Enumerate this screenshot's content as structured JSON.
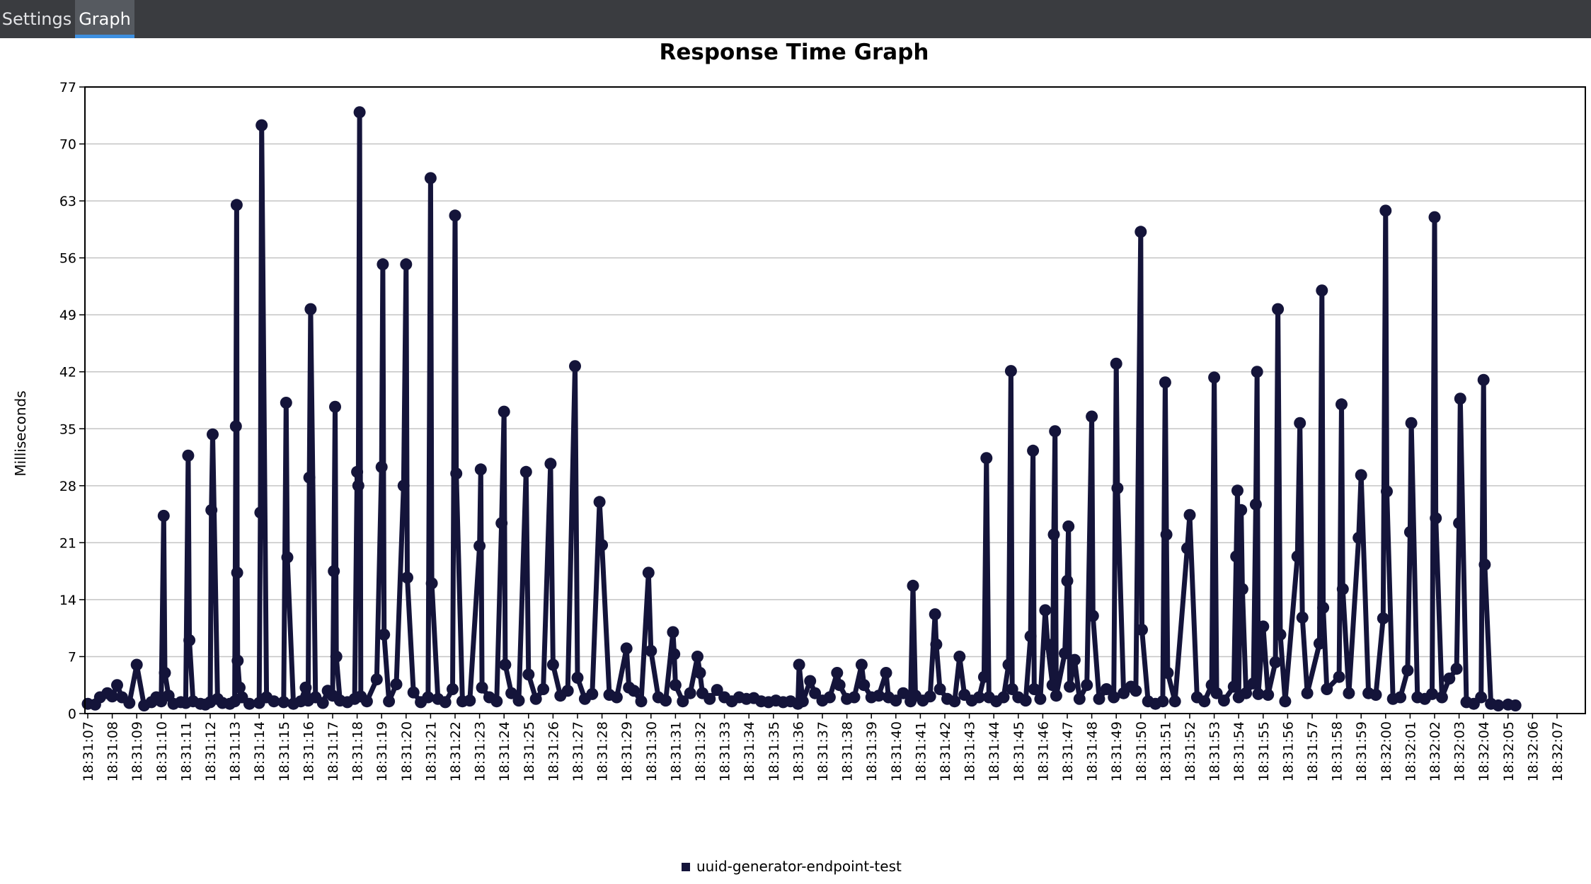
{
  "tabs": [
    {
      "label": "Settings",
      "active": false
    },
    {
      "label": "Graph",
      "active": true
    }
  ],
  "chart_data": {
    "type": "line",
    "title": "Response Time Graph",
    "ylabel": "Milliseconds",
    "xlabel": "",
    "ylim": [
      0,
      77
    ],
    "yticks": [
      0,
      7,
      14,
      21,
      28,
      35,
      42,
      49,
      56,
      63,
      70,
      77
    ],
    "grid": true,
    "legend_position": "bottom",
    "series_color": "#14143a",
    "categories": [
      "18:31:07",
      "18:31:08",
      "18:31:09",
      "18:31:10",
      "18:31:11",
      "18:31:12",
      "18:31:13",
      "18:31:14",
      "18:31:15",
      "18:31:16",
      "18:31:17",
      "18:31:18",
      "18:31:19",
      "18:31:20",
      "18:31:21",
      "18:31:22",
      "18:31:23",
      "18:31:24",
      "18:31:25",
      "18:31:26",
      "18:31:27",
      "18:31:28",
      "18:31:29",
      "18:31:30",
      "18:31:31",
      "18:31:32",
      "18:31:33",
      "18:31:34",
      "18:31:35",
      "18:31:36",
      "18:31:37",
      "18:31:38",
      "18:31:39",
      "18:31:40",
      "18:31:41",
      "18:31:42",
      "18:31:43",
      "18:31:44",
      "18:31:45",
      "18:31:46",
      "18:31:47",
      "18:31:48",
      "18:31:49",
      "18:31:50",
      "18:31:51",
      "18:31:52",
      "18:31:53",
      "18:31:54",
      "18:31:55",
      "18:31:56",
      "18:31:57",
      "18:31:58",
      "18:31:59",
      "18:32:00",
      "18:32:01",
      "18:32:02",
      "18:32:03",
      "18:32:04",
      "18:32:05",
      "18:32:06",
      "18:32:07"
    ],
    "series": [
      {
        "name": "uuid-generator-endpoint-test",
        "points": [
          [
            0.0,
            1.2
          ],
          [
            0.3,
            1.1
          ],
          [
            0.5,
            2.0
          ],
          [
            0.8,
            2.5
          ],
          [
            1.0,
            2.1
          ],
          [
            1.2,
            3.5
          ],
          [
            1.4,
            2.0
          ],
          [
            1.7,
            1.3
          ],
          [
            2.0,
            6.0
          ],
          [
            2.3,
            1.0
          ],
          [
            2.6,
            1.4
          ],
          [
            2.8,
            2.0
          ],
          [
            3.0,
            1.5
          ],
          [
            3.1,
            24.3
          ],
          [
            3.15,
            5.0
          ],
          [
            3.3,
            2.2
          ],
          [
            3.5,
            1.2
          ],
          [
            3.8,
            1.4
          ],
          [
            4.0,
            1.3
          ],
          [
            4.1,
            31.7
          ],
          [
            4.15,
            9.0
          ],
          [
            4.3,
            1.5
          ],
          [
            4.6,
            1.2
          ],
          [
            4.8,
            1.1
          ],
          [
            5.0,
            1.4
          ],
          [
            5.05,
            25.0
          ],
          [
            5.1,
            34.3
          ],
          [
            5.3,
            1.8
          ],
          [
            5.5,
            1.3
          ],
          [
            5.8,
            1.2
          ],
          [
            6.0,
            1.5
          ],
          [
            6.05,
            35.3
          ],
          [
            6.08,
            62.5
          ],
          [
            6.1,
            17.3
          ],
          [
            6.12,
            6.5
          ],
          [
            6.2,
            3.2
          ],
          [
            6.3,
            2.0
          ],
          [
            6.6,
            1.2
          ],
          [
            7.0,
            1.3
          ],
          [
            7.05,
            24.7
          ],
          [
            7.1,
            72.3
          ],
          [
            7.3,
            2.0
          ],
          [
            7.6,
            1.5
          ],
          [
            8.0,
            1.4
          ],
          [
            8.1,
            38.2
          ],
          [
            8.15,
            19.2
          ],
          [
            8.4,
            1.2
          ],
          [
            8.7,
            1.5
          ],
          [
            8.9,
            3.2
          ],
          [
            9.0,
            1.6
          ],
          [
            9.05,
            29.0
          ],
          [
            9.1,
            49.7
          ],
          [
            9.3,
            2.0
          ],
          [
            9.6,
            1.3
          ],
          [
            9.8,
            2.8
          ],
          [
            10.0,
            2.2
          ],
          [
            10.05,
            17.5
          ],
          [
            10.1,
            37.7
          ],
          [
            10.15,
            7.0
          ],
          [
            10.3,
            1.6
          ],
          [
            10.6,
            1.4
          ],
          [
            10.9,
            1.8
          ],
          [
            11.0,
            29.7
          ],
          [
            11.05,
            28.0
          ],
          [
            11.1,
            73.9
          ],
          [
            11.15,
            2.1
          ],
          [
            11.4,
            1.5
          ],
          [
            11.8,
            4.2
          ],
          [
            12.0,
            30.3
          ],
          [
            12.05,
            55.2
          ],
          [
            12.1,
            9.7
          ],
          [
            12.3,
            1.5
          ],
          [
            12.6,
            3.6
          ],
          [
            12.9,
            28.0
          ],
          [
            13.0,
            55.2
          ],
          [
            13.05,
            16.7
          ],
          [
            13.3,
            2.6
          ],
          [
            13.6,
            1.4
          ],
          [
            13.9,
            2.0
          ],
          [
            14.0,
            65.8
          ],
          [
            14.05,
            16.0
          ],
          [
            14.3,
            1.8
          ],
          [
            14.6,
            1.4
          ],
          [
            14.9,
            3.0
          ],
          [
            15.0,
            61.2
          ],
          [
            15.05,
            29.5
          ],
          [
            15.3,
            1.5
          ],
          [
            15.6,
            1.6
          ],
          [
            16.0,
            20.6
          ],
          [
            16.05,
            30.0
          ],
          [
            16.1,
            3.2
          ],
          [
            16.4,
            2.0
          ],
          [
            16.7,
            1.5
          ],
          [
            16.9,
            23.4
          ],
          [
            17.0,
            37.1
          ],
          [
            17.05,
            6.0
          ],
          [
            17.3,
            2.5
          ],
          [
            17.6,
            1.6
          ],
          [
            17.9,
            29.7
          ],
          [
            18.0,
            4.8
          ],
          [
            18.3,
            1.8
          ],
          [
            18.6,
            3.0
          ],
          [
            18.9,
            30.7
          ],
          [
            19.0,
            6.0
          ],
          [
            19.3,
            2.2
          ],
          [
            19.6,
            2.8
          ],
          [
            19.9,
            42.7
          ],
          [
            20.0,
            4.4
          ],
          [
            20.3,
            1.8
          ],
          [
            20.6,
            2.4
          ],
          [
            20.9,
            26.0
          ],
          [
            21.0,
            20.7
          ],
          [
            21.3,
            2.3
          ],
          [
            21.6,
            2.0
          ],
          [
            22.0,
            8.0
          ],
          [
            22.1,
            3.2
          ],
          [
            22.3,
            2.8
          ],
          [
            22.6,
            1.5
          ],
          [
            22.9,
            17.3
          ],
          [
            23.0,
            7.7
          ],
          [
            23.3,
            2.0
          ],
          [
            23.6,
            1.6
          ],
          [
            23.9,
            10.0
          ],
          [
            23.95,
            7.3
          ],
          [
            24.0,
            3.5
          ],
          [
            24.3,
            1.5
          ],
          [
            24.6,
            2.5
          ],
          [
            24.9,
            7.0
          ],
          [
            25.0,
            5.0
          ],
          [
            25.1,
            2.5
          ],
          [
            25.4,
            1.8
          ],
          [
            25.7,
            2.9
          ],
          [
            26.0,
            2.0
          ],
          [
            26.3,
            1.5
          ],
          [
            26.6,
            2.0
          ],
          [
            26.9,
            1.8
          ],
          [
            27.2,
            1.9
          ],
          [
            27.5,
            1.5
          ],
          [
            27.8,
            1.4
          ],
          [
            28.1,
            1.6
          ],
          [
            28.4,
            1.4
          ],
          [
            28.7,
            1.5
          ],
          [
            29.0,
            1.2
          ],
          [
            29.05,
            6.0
          ],
          [
            29.2,
            1.5
          ],
          [
            29.5,
            4.0
          ],
          [
            29.7,
            2.5
          ],
          [
            30.0,
            1.6
          ],
          [
            30.3,
            2.0
          ],
          [
            30.6,
            5.0
          ],
          [
            30.7,
            3.5
          ],
          [
            31.0,
            1.8
          ],
          [
            31.3,
            2.0
          ],
          [
            31.6,
            6.0
          ],
          [
            31.7,
            3.5
          ],
          [
            32.0,
            2.0
          ],
          [
            32.3,
            2.2
          ],
          [
            32.6,
            5.0
          ],
          [
            32.7,
            2.0
          ],
          [
            33.0,
            1.6
          ],
          [
            33.3,
            2.5
          ],
          [
            33.6,
            1.5
          ],
          [
            33.7,
            15.7
          ],
          [
            33.8,
            2.2
          ],
          [
            34.1,
            1.6
          ],
          [
            34.4,
            2.1
          ],
          [
            34.6,
            12.2
          ],
          [
            34.65,
            8.5
          ],
          [
            34.8,
            3.0
          ],
          [
            35.1,
            1.8
          ],
          [
            35.4,
            1.5
          ],
          [
            35.6,
            7.0
          ],
          [
            35.8,
            2.3
          ],
          [
            36.1,
            1.6
          ],
          [
            36.4,
            2.0
          ],
          [
            36.6,
            4.5
          ],
          [
            36.7,
            31.4
          ],
          [
            36.8,
            2.0
          ],
          [
            37.1,
            1.5
          ],
          [
            37.4,
            2.0
          ],
          [
            37.6,
            6.0
          ],
          [
            37.7,
            42.1
          ],
          [
            37.75,
            3.0
          ],
          [
            38.0,
            2.0
          ],
          [
            38.3,
            1.6
          ],
          [
            38.5,
            9.5
          ],
          [
            38.6,
            32.3
          ],
          [
            38.65,
            3.0
          ],
          [
            38.9,
            1.8
          ],
          [
            39.1,
            12.7
          ],
          [
            39.2,
            8.5
          ],
          [
            39.4,
            3.5
          ],
          [
            39.45,
            22.0
          ],
          [
            39.5,
            34.7
          ],
          [
            39.55,
            2.2
          ],
          [
            39.9,
            7.4
          ],
          [
            40.0,
            16.3
          ],
          [
            40.05,
            23.0
          ],
          [
            40.1,
            3.3
          ],
          [
            40.3,
            6.6
          ],
          [
            40.5,
            1.8
          ],
          [
            40.8,
            3.5
          ],
          [
            41.0,
            36.5
          ],
          [
            41.05,
            12.0
          ],
          [
            41.3,
            1.8
          ],
          [
            41.6,
            3.0
          ],
          [
            41.9,
            2.0
          ],
          [
            42.0,
            43.0
          ],
          [
            42.05,
            27.7
          ],
          [
            42.3,
            2.5
          ],
          [
            42.6,
            3.3
          ],
          [
            42.8,
            2.8
          ],
          [
            43.0,
            59.2
          ],
          [
            43.05,
            10.3
          ],
          [
            43.3,
            1.5
          ],
          [
            43.6,
            1.2
          ],
          [
            43.9,
            1.5
          ],
          [
            44.0,
            40.7
          ],
          [
            44.05,
            22.0
          ],
          [
            44.1,
            5.0
          ],
          [
            44.4,
            1.5
          ],
          [
            44.9,
            20.3
          ],
          [
            45.0,
            24.4
          ],
          [
            45.3,
            2.0
          ],
          [
            45.6,
            1.5
          ],
          [
            45.9,
            3.5
          ],
          [
            46.0,
            41.3
          ],
          [
            46.1,
            2.5
          ],
          [
            46.4,
            1.6
          ],
          [
            46.8,
            3.3
          ],
          [
            46.9,
            19.3
          ],
          [
            46.95,
            27.4
          ],
          [
            47.0,
            2.0
          ],
          [
            47.1,
            25.0
          ],
          [
            47.15,
            15.3
          ],
          [
            47.3,
            2.5
          ],
          [
            47.6,
            3.7
          ],
          [
            47.7,
            25.7
          ],
          [
            47.75,
            42.0
          ],
          [
            47.8,
            2.4
          ],
          [
            48.0,
            10.7
          ],
          [
            48.2,
            2.3
          ],
          [
            48.5,
            6.3
          ],
          [
            48.6,
            49.7
          ],
          [
            48.7,
            9.7
          ],
          [
            48.9,
            1.5
          ],
          [
            49.4,
            19.3
          ],
          [
            49.5,
            35.7
          ],
          [
            49.6,
            11.8
          ],
          [
            49.8,
            2.5
          ],
          [
            50.3,
            8.6
          ],
          [
            50.4,
            52.0
          ],
          [
            50.45,
            13.0
          ],
          [
            50.6,
            3.0
          ],
          [
            51.1,
            4.5
          ],
          [
            51.2,
            38.0
          ],
          [
            51.25,
            15.3
          ],
          [
            51.5,
            2.5
          ],
          [
            51.9,
            21.6
          ],
          [
            52.0,
            29.3
          ],
          [
            52.3,
            2.5
          ],
          [
            52.6,
            2.3
          ],
          [
            52.9,
            11.7
          ],
          [
            53.0,
            61.8
          ],
          [
            53.05,
            27.3
          ],
          [
            53.3,
            1.8
          ],
          [
            53.6,
            2.0
          ],
          [
            53.9,
            5.3
          ],
          [
            54.0,
            22.3
          ],
          [
            54.05,
            35.7
          ],
          [
            54.3,
            2.0
          ],
          [
            54.6,
            1.8
          ],
          [
            54.9,
            2.4
          ],
          [
            55.0,
            61.0
          ],
          [
            55.05,
            24.0
          ],
          [
            55.3,
            2.0
          ],
          [
            55.6,
            4.3
          ],
          [
            55.9,
            5.5
          ],
          [
            56.0,
            23.4
          ],
          [
            56.05,
            38.7
          ],
          [
            56.3,
            1.4
          ],
          [
            56.6,
            1.2
          ],
          [
            56.9,
            2.0
          ],
          [
            57.0,
            41.0
          ],
          [
            57.05,
            18.3
          ],
          [
            57.3,
            1.2
          ],
          [
            57.6,
            1.0
          ],
          [
            58.0,
            1.1
          ],
          [
            58.3,
            1.0
          ]
        ]
      }
    ]
  }
}
